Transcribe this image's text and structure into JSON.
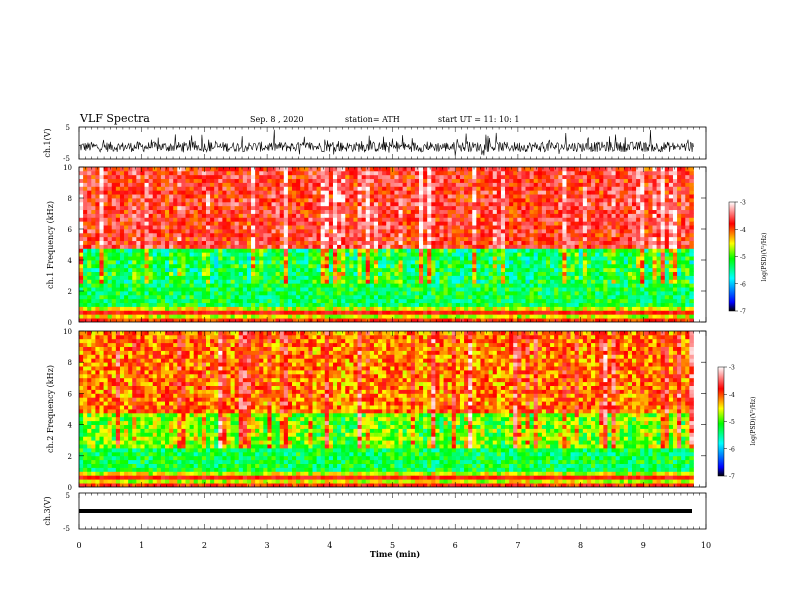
{
  "header": {
    "title": "VLF Spectra",
    "date": "Sep. 8 , 2020",
    "station": "station= ATH",
    "start": "start UT = 11: 10: 1"
  },
  "chart_data": [
    {
      "type": "line",
      "panel": "ch1-waveform",
      "ylabel": "ch.1(V)",
      "ylim": [
        -5,
        5
      ],
      "yticks": [
        "5",
        "-5"
      ],
      "xlim": [
        0,
        10
      ]
    },
    {
      "type": "heatmap",
      "panel": "ch1-spectrogram",
      "ylabel": "ch.1 Frequency (kHz)",
      "ylim": [
        0,
        10
      ],
      "yticks": [
        "0",
        "2",
        "4",
        "6",
        "8",
        "10"
      ],
      "xlim": [
        0,
        10
      ],
      "data_end_min": 9.8,
      "colorbar": {
        "label": "log(PSD)(V²/Hz)",
        "range": [
          -7,
          -3
        ],
        "ticks": [
          "-3",
          "-4",
          "-5",
          "-6",
          "-7"
        ]
      }
    },
    {
      "type": "heatmap",
      "panel": "ch2-spectrogram",
      "ylabel": "ch.2 Frequency (kHz)",
      "ylim": [
        0,
        10
      ],
      "yticks": [
        "0",
        "2",
        "4",
        "6",
        "8",
        "10"
      ],
      "xlim": [
        0,
        10
      ],
      "data_end_min": 9.8,
      "colorbar": {
        "label": "log(PSD)(V²/Hz)",
        "range": [
          -7,
          -3
        ],
        "ticks": [
          "-3",
          "-4",
          "-5",
          "-6",
          "-7"
        ]
      }
    },
    {
      "type": "line",
      "panel": "ch3-waveform",
      "ylabel": "ch.3(V)",
      "ylim": [
        -5,
        5
      ],
      "yticks": [
        "5",
        "-5"
      ],
      "xlim": [
        0,
        10
      ]
    }
  ],
  "xaxis": {
    "label": "Time (min)",
    "ticks": [
      "0",
      "1",
      "2",
      "3",
      "4",
      "5",
      "6",
      "7",
      "8",
      "9",
      "10"
    ]
  },
  "colors": {
    "scale": [
      "#000000",
      "#0000ff",
      "#00ffff",
      "#00ff00",
      "#ffff00",
      "#ff0000",
      "#ffffff"
    ]
  }
}
